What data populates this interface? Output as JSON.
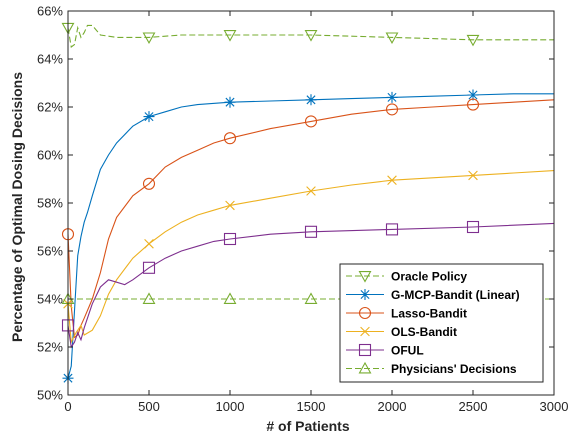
{
  "chart_data": {
    "type": "line",
    "xlabel": "# of Patients",
    "ylabel": "Percentage of Optimal Dosing Decisions",
    "xlim": [
      0,
      3000
    ],
    "ylim": [
      50,
      66
    ],
    "x_ticks": [
      0,
      500,
      1000,
      1500,
      2000,
      2500,
      3000
    ],
    "x_tick_labels": [
      "0",
      "500",
      "1000",
      "1500",
      "2000",
      "2500",
      "3000"
    ],
    "y_ticks": [
      50,
      52,
      54,
      56,
      58,
      60,
      62,
      64,
      66
    ],
    "y_tick_labels": [
      "50%",
      "52%",
      "54%",
      "56%",
      "58%",
      "60%",
      "62%",
      "64%",
      "66%"
    ],
    "grid": false,
    "legend_position": "bottom-right",
    "series": [
      {
        "name": "Oracle Policy",
        "color": "#77AC30",
        "dash": "dashed",
        "marker": "triangle-down",
        "points": [
          [
            0,
            65.3
          ],
          [
            20,
            64.5
          ],
          [
            40,
            64.6
          ],
          [
            60,
            65.3
          ],
          [
            80,
            64.9
          ],
          [
            100,
            65.1
          ],
          [
            120,
            65.4
          ],
          [
            150,
            65.4
          ],
          [
            200,
            65.0
          ],
          [
            300,
            64.9
          ],
          [
            400,
            64.9
          ],
          [
            500,
            64.9
          ],
          [
            700,
            65.0
          ],
          [
            1000,
            65.0
          ],
          [
            1500,
            65.0
          ],
          [
            2000,
            64.9
          ],
          [
            2500,
            64.8
          ],
          [
            3000,
            64.8
          ]
        ],
        "markers": [
          [
            0,
            65.3
          ],
          [
            500,
            64.9
          ],
          [
            1000,
            65.0
          ],
          [
            1500,
            65.0
          ],
          [
            2000,
            64.9
          ],
          [
            2500,
            64.8
          ]
        ]
      },
      {
        "name": "G-MCP-Bandit (Linear)",
        "color": "#0072BD",
        "dash": "solid",
        "marker": "star",
        "points": [
          [
            0,
            50.7
          ],
          [
            20,
            51.2
          ],
          [
            40,
            53.5
          ],
          [
            60,
            55.8
          ],
          [
            80,
            56.6
          ],
          [
            100,
            57.2
          ],
          [
            120,
            57.6
          ],
          [
            150,
            58.3
          ],
          [
            200,
            59.4
          ],
          [
            250,
            60.0
          ],
          [
            300,
            60.5
          ],
          [
            400,
            61.2
          ],
          [
            500,
            61.6
          ],
          [
            600,
            61.8
          ],
          [
            700,
            62.0
          ],
          [
            800,
            62.1
          ],
          [
            1000,
            62.2
          ],
          [
            1250,
            62.25
          ],
          [
            1500,
            62.3
          ],
          [
            1750,
            62.35
          ],
          [
            2000,
            62.4
          ],
          [
            2250,
            62.45
          ],
          [
            2500,
            62.5
          ],
          [
            2750,
            62.55
          ],
          [
            3000,
            62.55
          ]
        ],
        "markers": [
          [
            0,
            50.7
          ],
          [
            500,
            61.6
          ],
          [
            1000,
            62.2
          ],
          [
            1500,
            62.3
          ],
          [
            2000,
            62.4
          ],
          [
            2500,
            62.5
          ]
        ]
      },
      {
        "name": "Lasso-Bandit",
        "color": "#D95319",
        "dash": "solid",
        "marker": "circle",
        "points": [
          [
            0,
            56.7
          ],
          [
            20,
            53.7
          ],
          [
            40,
            52.4
          ],
          [
            60,
            52.5
          ],
          [
            80,
            52.9
          ],
          [
            100,
            53.2
          ],
          [
            150,
            54.0
          ],
          [
            200,
            55.1
          ],
          [
            250,
            56.5
          ],
          [
            300,
            57.4
          ],
          [
            400,
            58.3
          ],
          [
            500,
            58.8
          ],
          [
            600,
            59.5
          ],
          [
            700,
            59.9
          ],
          [
            800,
            60.2
          ],
          [
            900,
            60.5
          ],
          [
            1000,
            60.7
          ],
          [
            1250,
            61.1
          ],
          [
            1500,
            61.4
          ],
          [
            1750,
            61.7
          ],
          [
            2000,
            61.9
          ],
          [
            2250,
            62.0
          ],
          [
            2500,
            62.1
          ],
          [
            2750,
            62.2
          ],
          [
            3000,
            62.3
          ]
        ],
        "markers": [
          [
            0,
            56.7
          ],
          [
            500,
            58.8
          ],
          [
            1000,
            60.7
          ],
          [
            1500,
            61.4
          ],
          [
            2000,
            61.9
          ],
          [
            2500,
            62.1
          ]
        ]
      },
      {
        "name": "OLS-Bandit",
        "color": "#EDB120",
        "dash": "solid",
        "marker": "x",
        "points": [
          [
            0,
            53.8
          ],
          [
            20,
            52.2
          ],
          [
            50,
            52.6
          ],
          [
            80,
            52.9
          ],
          [
            100,
            52.5
          ],
          [
            150,
            52.7
          ],
          [
            200,
            53.3
          ],
          [
            250,
            54.2
          ],
          [
            300,
            54.8
          ],
          [
            400,
            55.7
          ],
          [
            500,
            56.3
          ],
          [
            600,
            56.8
          ],
          [
            700,
            57.2
          ],
          [
            800,
            57.5
          ],
          [
            900,
            57.7
          ],
          [
            1000,
            57.9
          ],
          [
            1250,
            58.2
          ],
          [
            1500,
            58.5
          ],
          [
            1750,
            58.75
          ],
          [
            2000,
            58.95
          ],
          [
            2250,
            59.05
          ],
          [
            2500,
            59.15
          ],
          [
            2750,
            59.25
          ],
          [
            3000,
            59.35
          ]
        ],
        "markers": [
          [
            0,
            53.8
          ],
          [
            500,
            56.3
          ],
          [
            1000,
            57.9
          ],
          [
            1500,
            58.5
          ],
          [
            2000,
            58.95
          ],
          [
            2500,
            59.15
          ]
        ]
      },
      {
        "name": "OFUL",
        "color": "#7E2F8E",
        "dash": "solid",
        "marker": "square",
        "points": [
          [
            0,
            52.9
          ],
          [
            20,
            52.0
          ],
          [
            40,
            52.2
          ],
          [
            60,
            52.6
          ],
          [
            80,
            52.3
          ],
          [
            100,
            52.8
          ],
          [
            150,
            53.8
          ],
          [
            200,
            54.5
          ],
          [
            250,
            54.8
          ],
          [
            300,
            54.7
          ],
          [
            350,
            54.6
          ],
          [
            400,
            54.8
          ],
          [
            500,
            55.3
          ],
          [
            600,
            55.7
          ],
          [
            700,
            56.0
          ],
          [
            800,
            56.2
          ],
          [
            900,
            56.4
          ],
          [
            1000,
            56.5
          ],
          [
            1250,
            56.7
          ],
          [
            1500,
            56.8
          ],
          [
            2000,
            56.9
          ],
          [
            2500,
            57.0
          ],
          [
            3000,
            57.15
          ]
        ],
        "markers": [
          [
            0,
            52.9
          ],
          [
            500,
            55.3
          ],
          [
            1000,
            56.5
          ],
          [
            1500,
            56.8
          ],
          [
            2000,
            56.9
          ],
          [
            2500,
            57.0
          ]
        ]
      },
      {
        "name": "Physicians' Decisions",
        "color": "#77AC30",
        "dash": "dashed",
        "marker": "triangle-up",
        "points": [
          [
            0,
            54.0
          ],
          [
            3000,
            54.0
          ]
        ],
        "markers": [
          [
            0,
            54.0
          ],
          [
            500,
            54.0
          ],
          [
            1000,
            54.0
          ],
          [
            1500,
            54.0
          ]
        ]
      }
    ]
  }
}
